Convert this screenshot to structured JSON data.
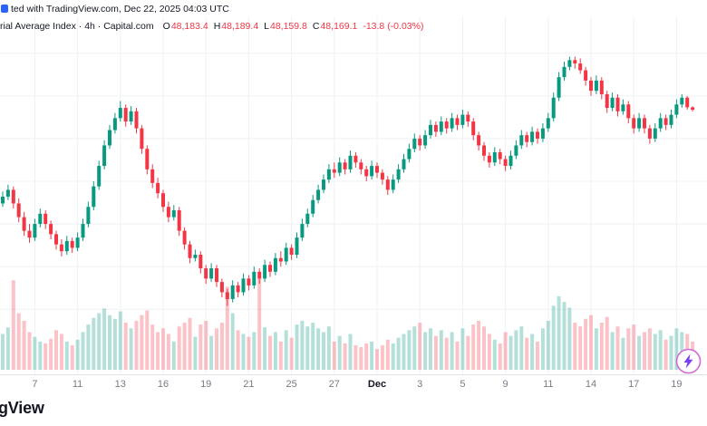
{
  "attribution": {
    "text": "ted with TradingView.com, Dec 22, 2025 04:03 UTC"
  },
  "legend": {
    "symbol": "rial Average Index · 4h · Capital.com",
    "open_label": "O",
    "open": "48,183.4",
    "high_label": "H",
    "high": "48,189.4",
    "low_label": "L",
    "low": "48,159.8",
    "close_label": "C",
    "close": "48,169.1",
    "change": "-13.8 (-0.03%)"
  },
  "logo": {
    "text": "gView"
  },
  "colors": {
    "up": "#089981",
    "down": "#f23645",
    "grid": "#eef1f6",
    "axis_line": "#e0e3eb",
    "label": "#787b86",
    "label_month": "#131722",
    "accent_blue": "#2962ff",
    "legend_red": "#f23645",
    "flash_ring": "#d36ad3",
    "flash_bolt": "#7b3ff2"
  },
  "chart_data": {
    "type": "candlestick",
    "title": "rial Average Index · 4h · Capital.com",
    "interval": "4h",
    "source": "Capital.com",
    "snapshot_time": "Dec 22, 2025 04:03 UTC",
    "last_bar": {
      "open": 48183.4,
      "high": 48189.4,
      "low": 48159.8,
      "close": 48169.1,
      "change": -13.8,
      "change_pct": -0.03
    },
    "price_range": {
      "min": 46980,
      "max": 48520
    },
    "h_gridlines": [
      47000,
      47250,
      47500,
      47750,
      48000,
      48250,
      48500
    ],
    "x_labels": [
      {
        "t": "7",
        "i": 6
      },
      {
        "t": "11",
        "i": 14
      },
      {
        "t": "13",
        "i": 22
      },
      {
        "t": "16",
        "i": 30
      },
      {
        "t": "19",
        "i": 38
      },
      {
        "t": "21",
        "i": 46
      },
      {
        "t": "25",
        "i": 54
      },
      {
        "t": "27",
        "i": 62
      },
      {
        "t": "Dec",
        "i": 70,
        "month": true
      },
      {
        "t": "3",
        "i": 78
      },
      {
        "t": "5",
        "i": 86
      },
      {
        "t": "9",
        "i": 94
      },
      {
        "t": "11",
        "i": 102
      },
      {
        "t": "14",
        "i": 110
      },
      {
        "t": "17",
        "i": 118
      },
      {
        "t": "19",
        "i": 126
      }
    ],
    "columns": [
      "open",
      "high",
      "low",
      "close",
      "volume"
    ],
    "candles": [
      [
        47620,
        47690,
        47600,
        47660,
        38
      ],
      [
        47660,
        47730,
        47640,
        47700,
        45
      ],
      [
        47700,
        47720,
        47590,
        47620,
        95
      ],
      [
        47620,
        47650,
        47510,
        47540,
        60
      ],
      [
        47540,
        47570,
        47430,
        47460,
        52
      ],
      [
        47460,
        47500,
        47390,
        47420,
        40
      ],
      [
        47420,
        47530,
        47400,
        47500,
        35
      ],
      [
        47500,
        47590,
        47480,
        47560,
        30
      ],
      [
        47560,
        47580,
        47470,
        47500,
        28
      ],
      [
        47500,
        47520,
        47410,
        47440,
        33
      ],
      [
        47440,
        47460,
        47350,
        47380,
        42
      ],
      [
        47380,
        47410,
        47310,
        47340,
        38
      ],
      [
        47340,
        47430,
        47320,
        47400,
        30
      ],
      [
        47400,
        47420,
        47330,
        47360,
        26
      ],
      [
        47360,
        47450,
        47340,
        47420,
        32
      ],
      [
        47420,
        47530,
        47400,
        47500,
        40
      ],
      [
        47500,
        47630,
        47480,
        47600,
        48
      ],
      [
        47600,
        47750,
        47580,
        47720,
        55
      ],
      [
        47720,
        47870,
        47700,
        47840,
        60
      ],
      [
        47840,
        47990,
        47820,
        47960,
        65
      ],
      [
        47960,
        48080,
        47940,
        48050,
        58
      ],
      [
        48050,
        48150,
        48030,
        48120,
        54
      ],
      [
        48120,
        48220,
        48100,
        48180,
        62
      ],
      [
        48180,
        48200,
        48070,
        48100,
        50
      ],
      [
        48100,
        48190,
        48080,
        48160,
        44
      ],
      [
        48160,
        48180,
        48030,
        48060,
        52
      ],
      [
        48060,
        48080,
        47910,
        47940,
        58
      ],
      [
        47940,
        47960,
        47790,
        47820,
        63
      ],
      [
        47820,
        47850,
        47710,
        47740,
        48
      ],
      [
        47740,
        47770,
        47650,
        47680,
        40
      ],
      [
        47680,
        47700,
        47570,
        47600,
        44
      ],
      [
        47600,
        47630,
        47510,
        47540,
        38
      ],
      [
        47540,
        47610,
        47520,
        47580,
        30
      ],
      [
        47580,
        47600,
        47430,
        47460,
        46
      ],
      [
        47460,
        47480,
        47350,
        47380,
        50
      ],
      [
        47380,
        47400,
        47270,
        47300,
        55
      ],
      [
        47300,
        47350,
        47280,
        47320,
        35
      ],
      [
        47320,
        47340,
        47210,
        47240,
        48
      ],
      [
        47240,
        47260,
        47150,
        47180,
        52
      ],
      [
        47180,
        47270,
        47160,
        47240,
        36
      ],
      [
        47240,
        47260,
        47130,
        47160,
        44
      ],
      [
        47160,
        47180,
        47070,
        47100,
        50
      ],
      [
        47100,
        47120,
        47020,
        47060,
        88
      ],
      [
        47060,
        47170,
        47040,
        47140,
        60
      ],
      [
        47140,
        47160,
        47070,
        47100,
        42
      ],
      [
        47100,
        47210,
        47080,
        47180,
        38
      ],
      [
        47180,
        47200,
        47110,
        47140,
        35
      ],
      [
        47140,
        47250,
        47120,
        47220,
        40
      ],
      [
        47220,
        47240,
        47150,
        47180,
        98
      ],
      [
        47180,
        47290,
        47160,
        47260,
        45
      ],
      [
        47260,
        47280,
        47190,
        47220,
        36
      ],
      [
        47220,
        47330,
        47200,
        47300,
        40
      ],
      [
        47300,
        47340,
        47250,
        47280,
        30
      ],
      [
        47280,
        47390,
        47260,
        47360,
        42
      ],
      [
        47360,
        47380,
        47290,
        47320,
        34
      ],
      [
        47320,
        47450,
        47300,
        47420,
        48
      ],
      [
        47420,
        47530,
        47400,
        47500,
        52
      ],
      [
        47500,
        47590,
        47480,
        47560,
        46
      ],
      [
        47560,
        47670,
        47540,
        47640,
        50
      ],
      [
        47640,
        47730,
        47620,
        47700,
        44
      ],
      [
        47700,
        47790,
        47680,
        47760,
        40
      ],
      [
        47760,
        47850,
        47740,
        47820,
        46
      ],
      [
        47820,
        47860,
        47770,
        47800,
        30
      ],
      [
        47800,
        47890,
        47780,
        47860,
        36
      ],
      [
        47860,
        47880,
        47790,
        47820,
        28
      ],
      [
        47820,
        47930,
        47800,
        47900,
        38
      ],
      [
        47900,
        47920,
        47830,
        47860,
        26
      ],
      [
        47860,
        47880,
        47790,
        47820,
        24
      ],
      [
        47820,
        47840,
        47750,
        47780,
        28
      ],
      [
        47780,
        47870,
        47760,
        47840,
        30
      ],
      [
        47840,
        47860,
        47770,
        47800,
        22
      ],
      [
        47800,
        47820,
        47730,
        47760,
        26
      ],
      [
        47760,
        47780,
        47670,
        47700,
        32
      ],
      [
        47700,
        47790,
        47680,
        47760,
        28
      ],
      [
        47760,
        47850,
        47740,
        47820,
        34
      ],
      [
        47820,
        47910,
        47800,
        47880,
        38
      ],
      [
        47880,
        47970,
        47860,
        47940,
        42
      ],
      [
        47940,
        48030,
        47920,
        48000,
        46
      ],
      [
        48000,
        48020,
        47930,
        47960,
        50
      ],
      [
        47960,
        48050,
        47940,
        48020,
        40
      ],
      [
        48020,
        48110,
        48000,
        48080,
        44
      ],
      [
        48080,
        48100,
        48010,
        48040,
        36
      ],
      [
        48040,
        48130,
        48020,
        48100,
        42
      ],
      [
        48100,
        48120,
        48030,
        48060,
        34
      ],
      [
        48060,
        48150,
        48040,
        48120,
        40
      ],
      [
        48120,
        48140,
        48050,
        48080,
        30
      ],
      [
        48080,
        48170,
        48060,
        48140,
        44
      ],
      [
        48140,
        48160,
        48070,
        48100,
        36
      ],
      [
        48100,
        48120,
        47990,
        48020,
        48
      ],
      [
        48020,
        48040,
        47930,
        47960,
        52
      ],
      [
        47960,
        47980,
        47870,
        47900,
        46
      ],
      [
        47900,
        47920,
        47830,
        47860,
        38
      ],
      [
        47860,
        47950,
        47840,
        47920,
        32
      ],
      [
        47920,
        47940,
        47850,
        47880,
        28
      ],
      [
        47880,
        47900,
        47810,
        47840,
        40
      ],
      [
        47840,
        47930,
        47820,
        47900,
        36
      ],
      [
        47900,
        47990,
        47880,
        47960,
        42
      ],
      [
        47960,
        48050,
        47940,
        48020,
        46
      ],
      [
        48020,
        48040,
        47950,
        47980,
        34
      ],
      [
        47980,
        48070,
        47960,
        48040,
        38
      ],
      [
        48040,
        48060,
        47970,
        48000,
        30
      ],
      [
        48000,
        48090,
        47980,
        48060,
        44
      ],
      [
        48060,
        48150,
        48040,
        48120,
        52
      ],
      [
        48120,
        48270,
        48100,
        48240,
        68
      ],
      [
        48240,
        48390,
        48220,
        48360,
        78
      ],
      [
        48360,
        48450,
        48340,
        48420,
        72
      ],
      [
        48420,
        48480,
        48400,
        48460,
        66
      ],
      [
        48460,
        48480,
        48410,
        48440,
        50
      ],
      [
        48440,
        48470,
        48380,
        48400,
        46
      ],
      [
        48400,
        48420,
        48310,
        48340,
        54
      ],
      [
        48340,
        48360,
        48250,
        48280,
        58
      ],
      [
        48280,
        48370,
        48260,
        48340,
        44
      ],
      [
        48340,
        48360,
        48230,
        48260,
        50
      ],
      [
        48260,
        48280,
        48150,
        48180,
        56
      ],
      [
        48180,
        48270,
        48160,
        48240,
        40
      ],
      [
        48240,
        48260,
        48130,
        48160,
        46
      ],
      [
        48160,
        48230,
        48140,
        48200,
        34
      ],
      [
        48200,
        48220,
        48090,
        48120,
        44
      ],
      [
        48120,
        48140,
        48030,
        48060,
        48
      ],
      [
        48060,
        48150,
        48040,
        48120,
        36
      ],
      [
        48120,
        48140,
        48030,
        48060,
        40
      ],
      [
        48060,
        48080,
        47970,
        48000,
        44
      ],
      [
        48000,
        48090,
        47980,
        48060,
        38
      ],
      [
        48060,
        48150,
        48040,
        48120,
        42
      ],
      [
        48120,
        48140,
        48050,
        48080,
        32
      ],
      [
        48080,
        48170,
        48060,
        48140,
        36
      ],
      [
        48140,
        48230,
        48120,
        48200,
        44
      ],
      [
        48200,
        48260,
        48180,
        48240,
        40
      ],
      [
        48240,
        48250,
        48170,
        48183.4,
        38
      ],
      [
        48183.4,
        48189.4,
        48159.8,
        48169.1,
        30
      ]
    ]
  }
}
